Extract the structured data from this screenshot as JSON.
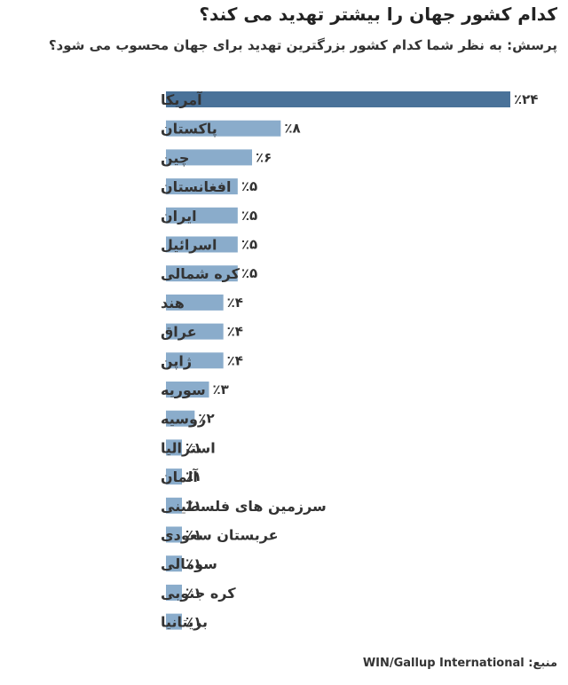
{
  "chart_data": {
    "type": "bar",
    "orientation": "horizontal",
    "title": "کدام کشور جهان را بیشتر تهدید می کند؟",
    "subtitle": "پرسش: به نظر شما کدام کشور بزرگترین تهدید برای جهان محسوب می شود؟",
    "categories": [
      "آمریکا",
      "پاکستان",
      "چین",
      "افغانستان",
      "ایران",
      "اسرائیل",
      "کره شمالی",
      "هند",
      "عراق",
      "ژاپن",
      "سوریه",
      "روسیه",
      "استرالیا",
      "آلمان",
      "سرزمین های فلسطینی",
      "عربستان سعودی",
      "سومالی",
      "کره جنوبی",
      "بریتانیا"
    ],
    "values": [
      24,
      8,
      6,
      5,
      5,
      5,
      5,
      4,
      4,
      4,
      3,
      2,
      1,
      1,
      1,
      1,
      1,
      1,
      1
    ],
    "value_labels": [
      "٪۲۴",
      "٪۸",
      "٪۶",
      "٪۵",
      "٪۵",
      "٪۵",
      "٪۵",
      "٪۴",
      "٪۴",
      "٪۴",
      "٪۳",
      "٪۲",
      "٪۱",
      "٪۱",
      "٪۱",
      "٪۱",
      "٪۱",
      "٪۱",
      "٪۱"
    ],
    "xlim": [
      0,
      24
    ],
    "grid": false,
    "legend": "none",
    "colors": {
      "highlight": "#4a7299",
      "default": "#8aaccb"
    }
  },
  "source": {
    "label": "منبع:",
    "text": "WIN/Gallup International"
  }
}
